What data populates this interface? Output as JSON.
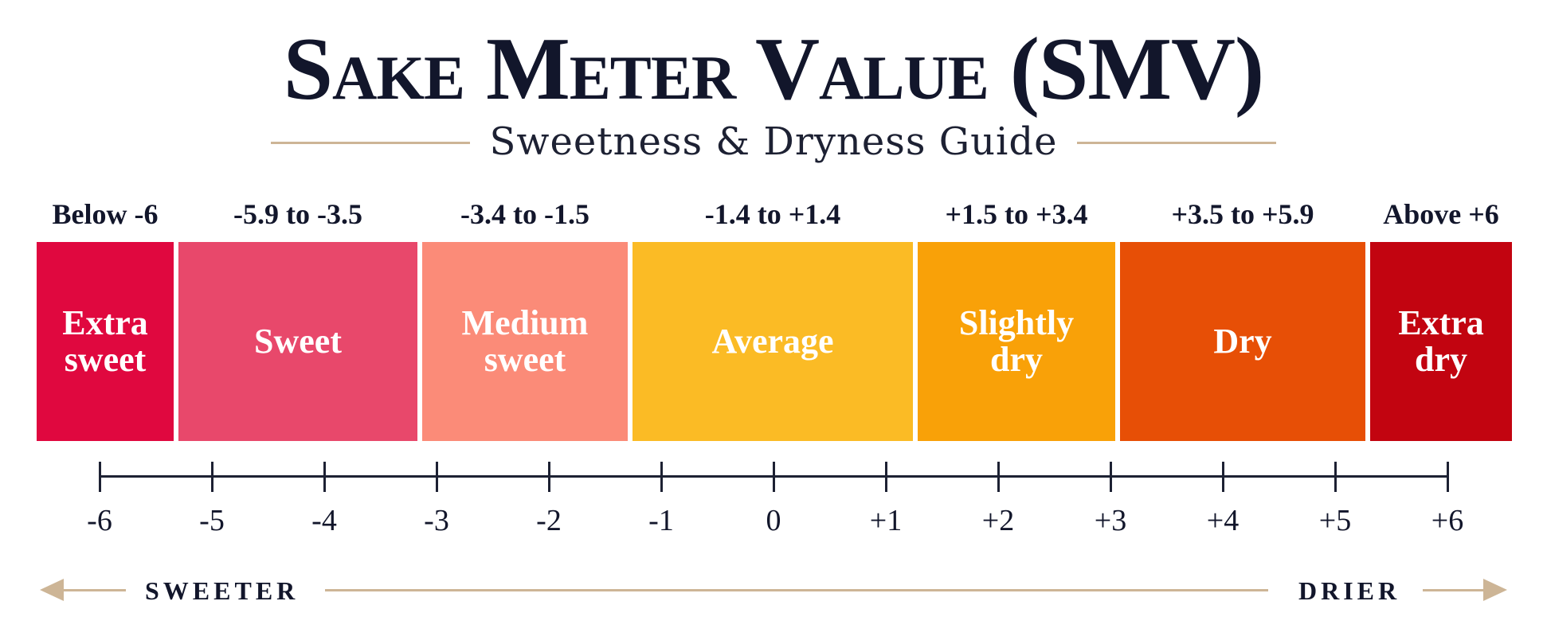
{
  "header": {
    "title": "Sake Meter Value (SMV)",
    "subtitle": "Sweetness & Dryness Guide"
  },
  "colors": {
    "title": "#12162b",
    "rule": "#cdb596"
  },
  "bands": [
    {
      "range": "Below -6",
      "name": "Extra sweet",
      "color": "#e0083f"
    },
    {
      "range": "-5.9 to -3.5",
      "name": "Sweet",
      "color": "#e8486b"
    },
    {
      "range": "-3.4 to -1.5",
      "name": "Medium sweet",
      "color": "#fb8b78"
    },
    {
      "range": "-1.4 to +1.4",
      "name": "Average",
      "color": "#fbbb25"
    },
    {
      "range": "+1.5 to +3.4",
      "name": "Slightly dry",
      "color": "#f9a108"
    },
    {
      "range": "+3.5 to +5.9",
      "name": "Dry",
      "color": "#e74f06"
    },
    {
      "range": "Above +6",
      "name": "Extra dry",
      "color": "#c20410"
    }
  ],
  "scale": {
    "ticks": [
      "-6",
      "-5",
      "-4",
      "-3",
      "-2",
      "-1",
      "0",
      "+1",
      "+2",
      "+3",
      "+4",
      "+5",
      "+6"
    ]
  },
  "direction": {
    "left_label": "SWEETER",
    "right_label": "DRIER"
  }
}
